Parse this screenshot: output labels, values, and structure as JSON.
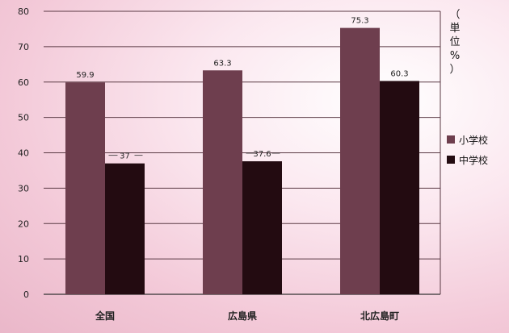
{
  "chart_data": {
    "type": "bar",
    "categories": [
      "全国",
      "広島県",
      "北広島町"
    ],
    "series": [
      {
        "name": "小学校",
        "values": [
          59.9,
          63.3,
          75.3
        ],
        "labels": [
          "59.9",
          "63.3",
          "75.3"
        ],
        "color": "#6e3e4e"
      },
      {
        "name": "中学校",
        "values": [
          37,
          37.6,
          60.3
        ],
        "labels": [
          "37",
          "37.6",
          "60.3"
        ],
        "color": "#230b11"
      }
    ],
    "y_ticks": [
      "0",
      "10",
      "20",
      "30",
      "40",
      "50",
      "60",
      "70",
      "80"
    ],
    "ylim": [
      0,
      80
    ],
    "unit_label": "（単位：%）",
    "unit_label_chars": [
      "（",
      "単",
      "位",
      "%",
      "）"
    ],
    "grid": true,
    "legend_position": "right"
  }
}
